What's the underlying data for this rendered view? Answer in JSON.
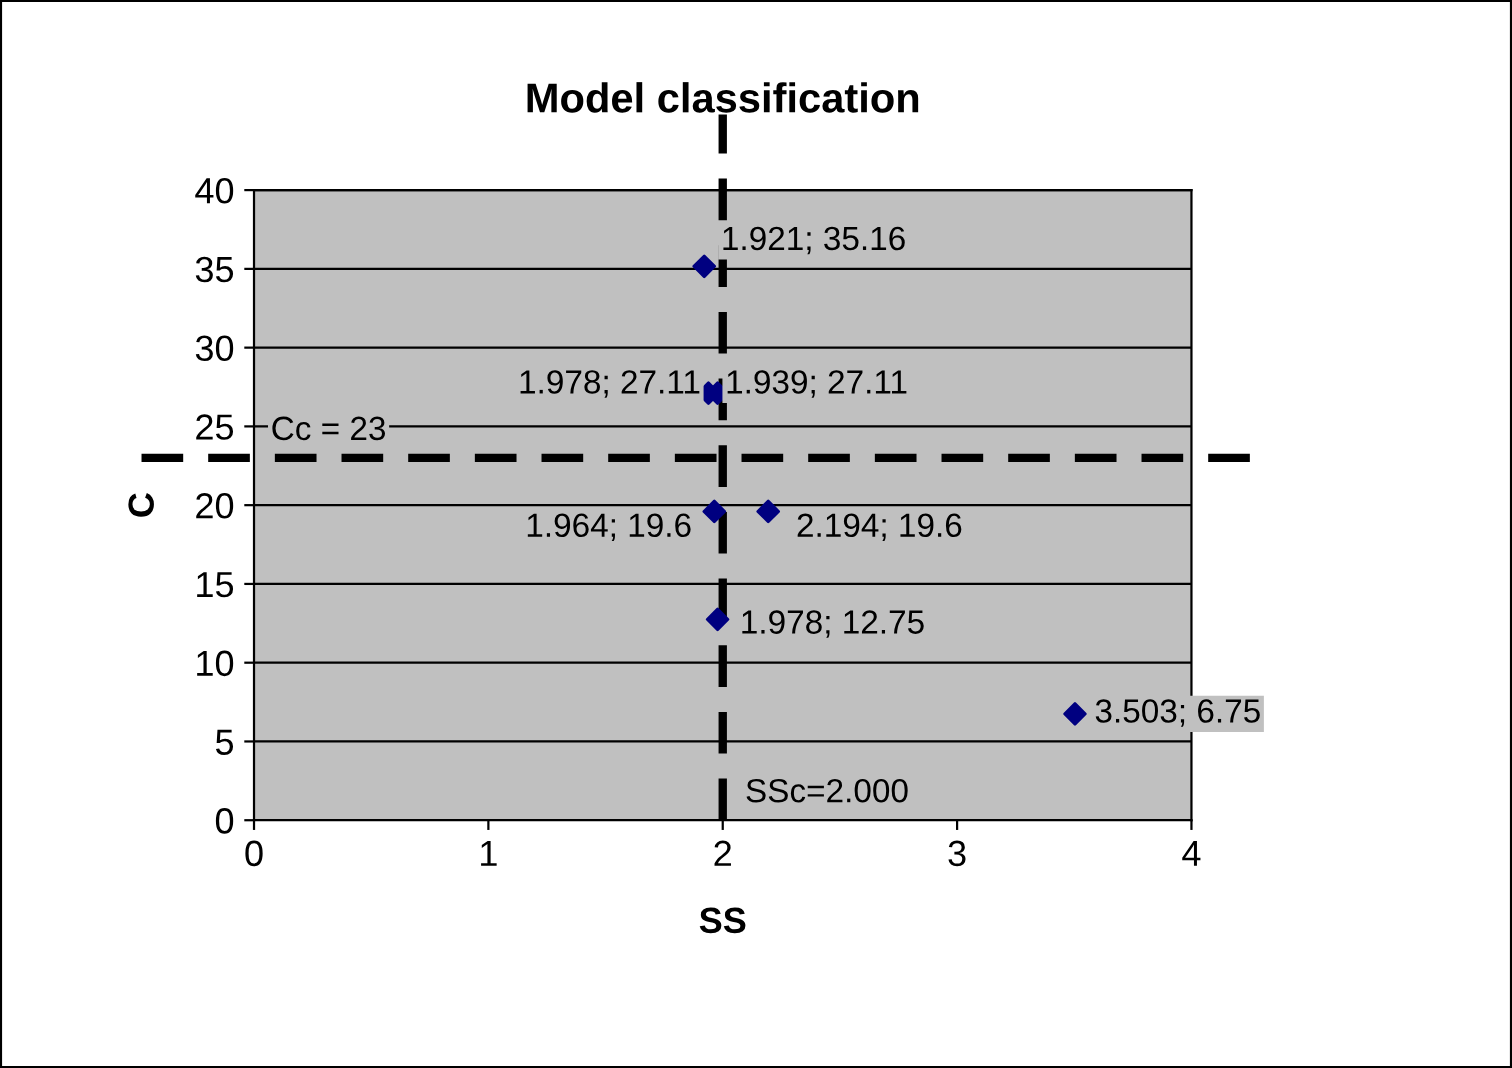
{
  "chart_data": {
    "type": "scatter",
    "title": "Model classification",
    "xlabel": "SS",
    "ylabel": "C",
    "x": [
      1.921,
      1.978,
      1.939,
      1.964,
      2.194,
      1.978,
      3.503
    ],
    "values": [
      35.16,
      27.11,
      27.11,
      19.6,
      19.6,
      12.75,
      6.75
    ],
    "value_labels": [
      "1.921; 35.16",
      "1.978; 27.11",
      "1.939; 27.11",
      "1.964; 19.6",
      "2.194; 19.6",
      "1.978; 12.75",
      "3.503; 6.75"
    ],
    "color": "#000080",
    "marker": "diamond",
    "xlim": [
      0,
      4
    ],
    "xticks": [
      0,
      1,
      2,
      3,
      4
    ],
    "ylim": [
      0,
      40
    ],
    "yticks": [
      0,
      5,
      10,
      15,
      20,
      25,
      30,
      35,
      40
    ],
    "grid": "y",
    "legend": false,
    "ref_lines": [
      {
        "axis": "y",
        "value": 23,
        "label": "Cc = 23",
        "color": "#000000",
        "line_style": "dashed"
      },
      {
        "axis": "x",
        "value": 2,
        "label": "SSc=2.000",
        "color": "#000000",
        "line_style": "dashed"
      }
    ]
  }
}
